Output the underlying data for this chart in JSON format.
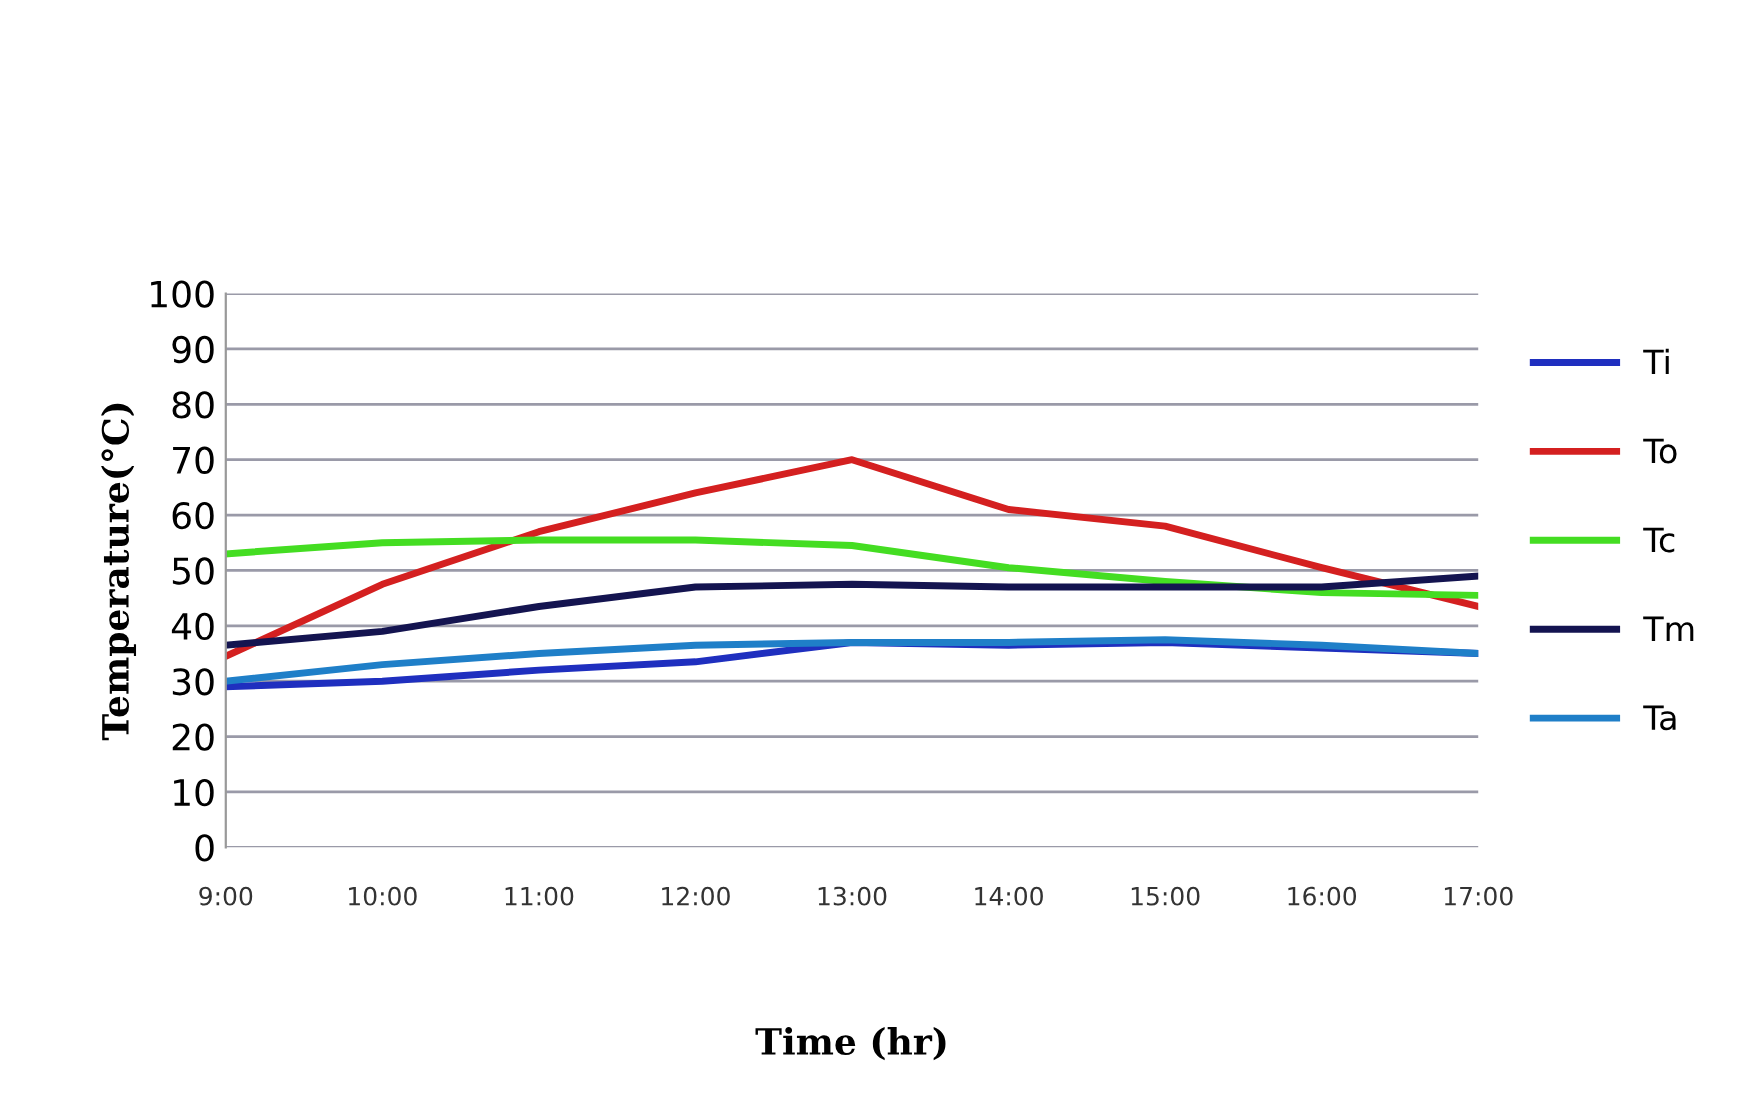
{
  "chart_data": {
    "type": "line",
    "xlabel": "Time (hr)",
    "ylabel": "Temperature(°C)",
    "categories": [
      "9:00",
      "10:00",
      "11:00",
      "12:00",
      "13:00",
      "14:00",
      "15:00",
      "16:00",
      "17:00"
    ],
    "series": [
      {
        "name": "Ti",
        "color": "#1f2fbf",
        "values": [
          29,
          30,
          32,
          33.5,
          37,
          36.5,
          37,
          36,
          35
        ]
      },
      {
        "name": "To",
        "color": "#d42020",
        "values": [
          34.5,
          47.5,
          57,
          64,
          70,
          61,
          58,
          50.5,
          43.5
        ]
      },
      {
        "name": "Tc",
        "color": "#44dd22",
        "values": [
          53,
          55,
          55.5,
          55.5,
          54.5,
          50.5,
          48,
          46,
          45.5
        ]
      },
      {
        "name": "Tm",
        "color": "#141450",
        "values": [
          36.5,
          39,
          43.5,
          47,
          47.5,
          47,
          47,
          47,
          49
        ]
      },
      {
        "name": "Ta",
        "color": "#1f7fc8",
        "values": [
          30,
          33,
          35,
          36.5,
          37,
          37,
          37.5,
          36.5,
          35
        ]
      }
    ],
    "ylim": [
      0,
      100
    ],
    "yticks": [
      0,
      10,
      20,
      30,
      40,
      50,
      60,
      70,
      80,
      90,
      100
    ],
    "grid": "y",
    "legend": "right",
    "marker": "none",
    "line_style": "solid"
  }
}
